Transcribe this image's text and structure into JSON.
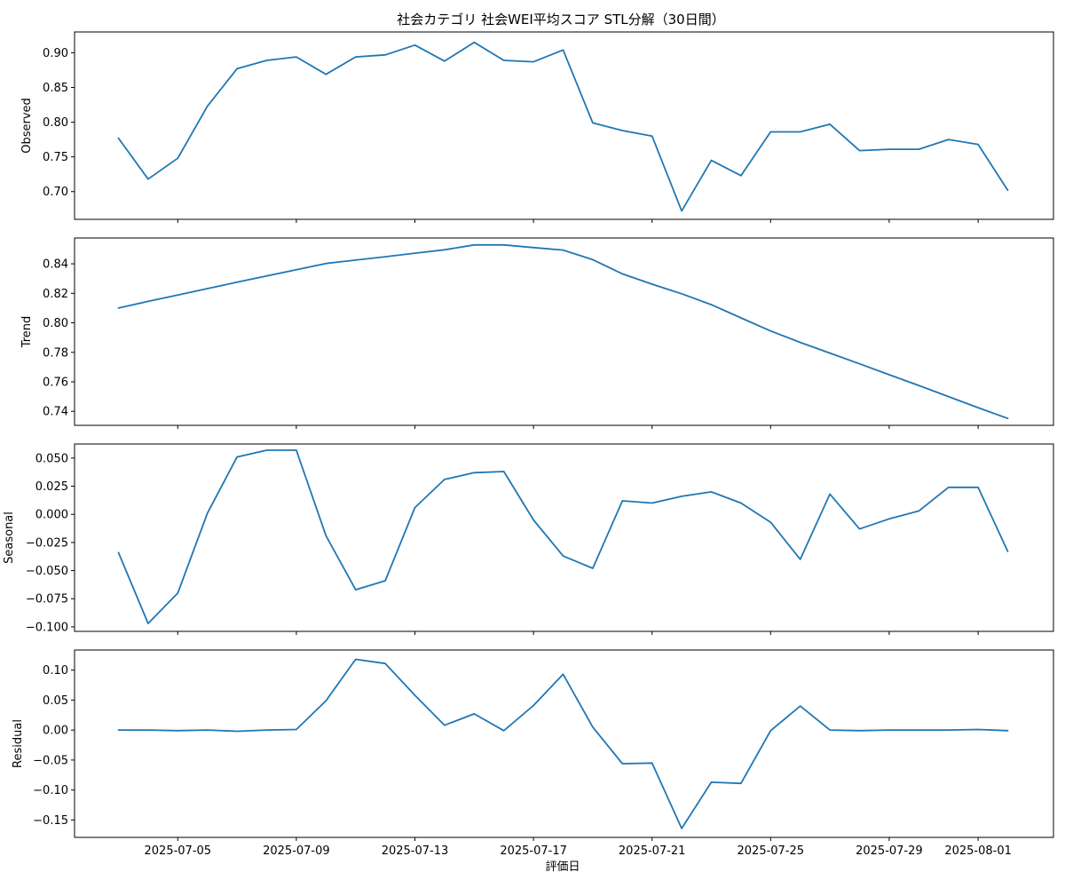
{
  "chart_data": {
    "type": "line",
    "title": "社会カテゴリ 社会WEI平均スコア STL分解（30日間）",
    "xlabel": "評価日",
    "x": [
      "2025-07-03",
      "2025-07-04",
      "2025-07-05",
      "2025-07-06",
      "2025-07-07",
      "2025-07-08",
      "2025-07-09",
      "2025-07-10",
      "2025-07-11",
      "2025-07-12",
      "2025-07-13",
      "2025-07-14",
      "2025-07-15",
      "2025-07-16",
      "2025-07-17",
      "2025-07-18",
      "2025-07-19",
      "2025-07-20",
      "2025-07-21",
      "2025-07-22",
      "2025-07-23",
      "2025-07-24",
      "2025-07-25",
      "2025-07-26",
      "2025-07-27",
      "2025-07-28",
      "2025-07-29",
      "2025-07-30",
      "2025-07-31",
      "2025-08-01",
      "2025-08-02"
    ],
    "x_ticks": [
      "2025-07-05",
      "2025-07-09",
      "2025-07-13",
      "2025-07-17",
      "2025-07-21",
      "2025-07-25",
      "2025-07-29",
      "2025-08-01"
    ],
    "line_color": "#1f77b4",
    "panels": [
      {
        "name": "Observed",
        "ylabel": "Observed",
        "ylim": [
          0.66,
          0.93
        ],
        "yticks": [
          0.7,
          0.75,
          0.8,
          0.85,
          0.9
        ],
        "ytick_labels": [
          "0.70",
          "0.75",
          "0.80",
          "0.85",
          "0.90"
        ],
        "values": [
          0.777,
          0.718,
          0.748,
          0.823,
          0.877,
          0.889,
          0.894,
          0.869,
          0.894,
          0.897,
          0.911,
          0.888,
          0.915,
          0.889,
          0.887,
          0.904,
          0.799,
          0.788,
          0.78,
          0.672,
          0.745,
          0.723,
          0.786,
          0.786,
          0.797,
          0.759,
          0.761,
          0.761,
          0.775,
          0.768,
          0.702
        ]
      },
      {
        "name": "Trend",
        "ylabel": "Trend",
        "ylim": [
          0.7305,
          0.8575
        ],
        "yticks": [
          0.74,
          0.76,
          0.78,
          0.8,
          0.82,
          0.84
        ],
        "ytick_labels": [
          "0.74",
          "0.76",
          "0.78",
          "0.80",
          "0.82",
          "0.84"
        ],
        "values": [
          0.81,
          0.8145,
          0.8188,
          0.8232,
          0.8275,
          0.8318,
          0.836,
          0.8402,
          0.8425,
          0.8448,
          0.8472,
          0.8495,
          0.8528,
          0.8528,
          0.851,
          0.8493,
          0.8428,
          0.8332,
          0.8262,
          0.8197,
          0.8123,
          0.8033,
          0.7945,
          0.7867,
          0.7795,
          0.7722,
          0.7648,
          0.7575,
          0.75,
          0.7425,
          0.7352
        ]
      },
      {
        "name": "Seasonal",
        "ylabel": "Seasonal",
        "ylim": [
          -0.104,
          0.0625
        ],
        "yticks": [
          -0.1,
          -0.075,
          -0.05,
          -0.025,
          0.0,
          0.025,
          0.05
        ],
        "ytick_labels": [
          "−0.100",
          "−0.075",
          "−0.050",
          "−0.025",
          "0.000",
          "0.025",
          "0.050"
        ],
        "values": [
          -0.034,
          -0.097,
          -0.07,
          0.001,
          0.051,
          0.057,
          0.057,
          -0.019,
          -0.067,
          -0.059,
          0.006,
          0.031,
          0.037,
          0.038,
          -0.005,
          -0.037,
          -0.048,
          0.012,
          0.01,
          0.016,
          0.02,
          0.01,
          -0.007,
          -0.04,
          0.018,
          -0.013,
          -0.004,
          0.003,
          0.024,
          0.024,
          -0.033
        ]
      },
      {
        "name": "Residual",
        "ylabel": "Residual",
        "ylim": [
          -0.179,
          0.1335
        ],
        "yticks": [
          -0.15,
          -0.1,
          -0.05,
          0.0,
          0.05,
          0.1
        ],
        "ytick_labels": [
          "−0.15",
          "−0.10",
          "−0.05",
          "0.00",
          "0.05",
          "0.10"
        ],
        "values": [
          0.0,
          0.0,
          -0.001,
          0.0,
          -0.002,
          0.0,
          0.001,
          0.049,
          0.118,
          0.111,
          0.058,
          0.008,
          0.027,
          -0.001,
          0.041,
          0.093,
          0.005,
          -0.056,
          -0.055,
          -0.164,
          -0.087,
          -0.089,
          -0.001,
          0.04,
          0.0,
          -0.001,
          0.0,
          0.0,
          0.0,
          0.001,
          -0.001
        ]
      }
    ]
  }
}
